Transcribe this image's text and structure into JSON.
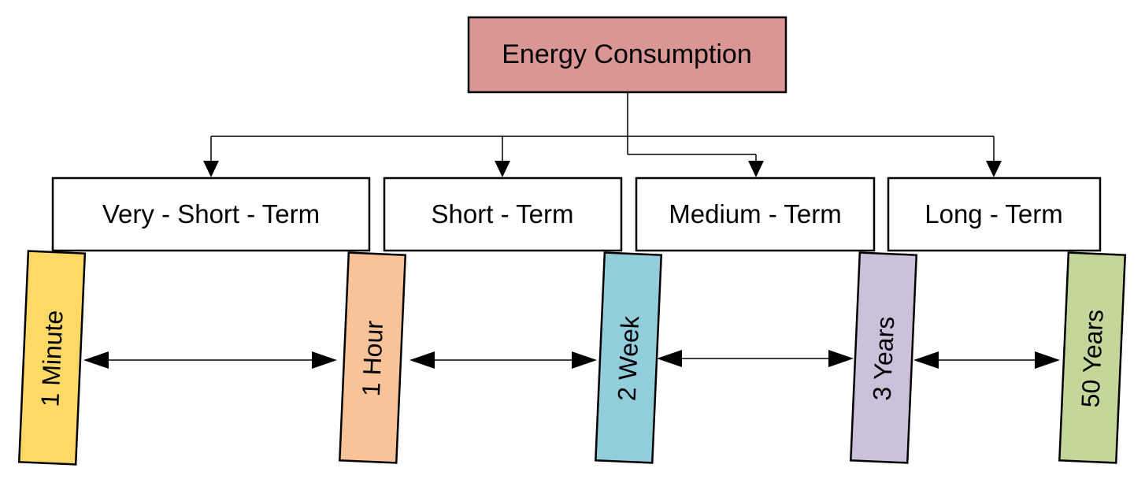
{
  "root": {
    "label": "Energy Consumption",
    "color": "#D99694"
  },
  "categories": [
    {
      "label": "Very - Short - Term"
    },
    {
      "label": "Short - Term"
    },
    {
      "label": "Medium - Term"
    },
    {
      "label": "Long - Term"
    }
  ],
  "markers": [
    {
      "label": "1 Minute",
      "color": "#FFD966"
    },
    {
      "label": "1 Hour",
      "color": "#F8C399"
    },
    {
      "label": "2 Week",
      "color": "#92CDDC"
    },
    {
      "label": "3 Years",
      "color": "#CCC1DA"
    },
    {
      "label": "50 Years",
      "color": "#C4D79B"
    }
  ],
  "connector_icon": "arrow-down-icon",
  "interval_icon": "double-headed-arrow-icon"
}
